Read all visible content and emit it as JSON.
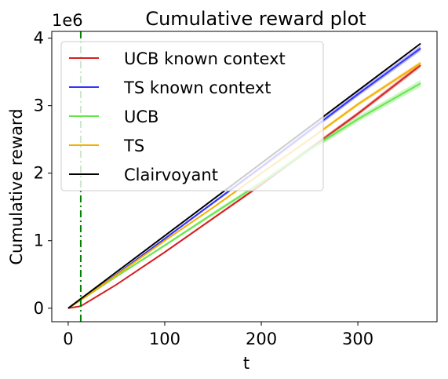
{
  "chart_data": {
    "type": "line",
    "title": "Cumulative reward plot",
    "xlabel": "t",
    "ylabel": "Cumulative reward",
    "offset_text": "1e6",
    "xlim": [
      -17,
      382
    ],
    "ylim": [
      -0.2,
      4.1
    ],
    "xticks": [
      0,
      100,
      200,
      300
    ],
    "yticks": [
      0,
      1,
      2,
      3,
      4
    ],
    "xtick_labels": [
      "0",
      "100",
      "200",
      "300"
    ],
    "ytick_labels": [
      "0",
      "1",
      "2",
      "3",
      "4"
    ],
    "legend_position": "upper-left",
    "grid": false,
    "vline": {
      "x": 13,
      "color": "#008000",
      "style": "dash-dot"
    },
    "series": [
      {
        "name": "UCB known context",
        "color": "#d62020",
        "x": [
          0,
          13,
          50,
          100,
          150,
          200,
          250,
          300,
          365
        ],
        "y": [
          0,
          0.03,
          0.35,
          0.83,
          1.33,
          1.83,
          2.36,
          2.88,
          3.6
        ],
        "band": 0.035
      },
      {
        "name": "TS known context",
        "color": "#3333ff",
        "x": [
          0,
          13,
          50,
          100,
          150,
          200,
          250,
          300,
          365
        ],
        "y": [
          0,
          0.12,
          0.5,
          1.03,
          1.56,
          2.09,
          2.63,
          3.17,
          3.85
        ],
        "band": 0.04
      },
      {
        "name": "UCB",
        "color": "#66e64d",
        "x": [
          0,
          13,
          50,
          100,
          150,
          200,
          250,
          300,
          365
        ],
        "y": [
          0,
          0.12,
          0.47,
          0.93,
          1.4,
          1.86,
          2.35,
          2.8,
          3.33
        ],
        "band": 0.05
      },
      {
        "name": "TS",
        "color": "#f5b000",
        "x": [
          0,
          13,
          50,
          100,
          150,
          200,
          250,
          300,
          365
        ],
        "y": [
          0,
          0.12,
          0.49,
          1.0,
          1.49,
          2.0,
          2.5,
          3.02,
          3.63
        ],
        "band": 0.03
      },
      {
        "name": "Clairvoyant",
        "color": "#000000",
        "x": [
          0,
          365
        ],
        "y": [
          0,
          3.92
        ],
        "band": 0
      }
    ]
  }
}
